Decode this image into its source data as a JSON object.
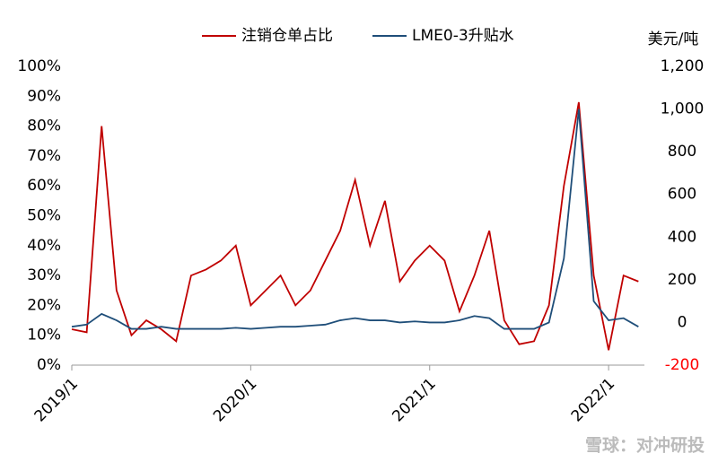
{
  "chart_data": {
    "type": "line",
    "categories": [
      "2019/1",
      null,
      null,
      null,
      null,
      null,
      null,
      null,
      null,
      null,
      null,
      null,
      "2020/1",
      null,
      null,
      null,
      null,
      null,
      null,
      null,
      null,
      null,
      null,
      null,
      "2021/1",
      null,
      null,
      null,
      null,
      null,
      null,
      null,
      null,
      null,
      null,
      null,
      "2022/1",
      null,
      null
    ],
    "series": [
      {
        "name": "注销仓单占比",
        "color": "#c00000",
        "values": [
          12,
          11,
          80,
          25,
          10,
          15,
          12,
          8,
          30,
          32,
          35,
          40,
          20,
          25,
          30,
          20,
          25,
          35,
          45,
          62,
          40,
          55,
          28,
          35,
          40,
          35,
          18,
          30,
          45,
          15,
          7,
          8,
          20,
          60,
          88,
          30,
          5,
          30,
          28
        ]
      },
      {
        "name": "LME0-3升贴水",
        "color": "#1f4e79",
        "axis": "y2",
        "values": [
          -20,
          -10,
          40,
          10,
          -30,
          -30,
          -20,
          -30,
          -30,
          -30,
          -30,
          -25,
          -30,
          -25,
          -20,
          -20,
          -15,
          -10,
          10,
          20,
          10,
          10,
          0,
          5,
          0,
          0,
          10,
          30,
          20,
          -30,
          -30,
          -30,
          0,
          300,
          1000,
          100,
          10,
          20,
          -20
        ]
      }
    ],
    "ylim": [
      0,
      100
    ],
    "yticks": [
      {
        "value": 0,
        "label": "0%"
      },
      {
        "value": 10,
        "label": "10%"
      },
      {
        "value": 20,
        "label": "20%"
      },
      {
        "value": 30,
        "label": "30%"
      },
      {
        "value": 40,
        "label": "40%"
      },
      {
        "value": 50,
        "label": "50%"
      },
      {
        "value": 60,
        "label": "60%"
      },
      {
        "value": 70,
        "label": "70%"
      },
      {
        "value": 80,
        "label": "80%"
      },
      {
        "value": 90,
        "label": "90%"
      },
      {
        "value": 100,
        "label": "100%"
      }
    ],
    "y2lim": [
      -200,
      1200
    ],
    "y2ticks": [
      -200,
      0,
      200,
      400,
      600,
      800,
      {
        "value": 1000,
        "label": "1,000"
      },
      {
        "value": 1200,
        "label": "1,200"
      }
    ],
    "y2_label": "美元/吨",
    "negative_tick_color": "#ff0000",
    "watermark": "雪球：对冲研投"
  }
}
